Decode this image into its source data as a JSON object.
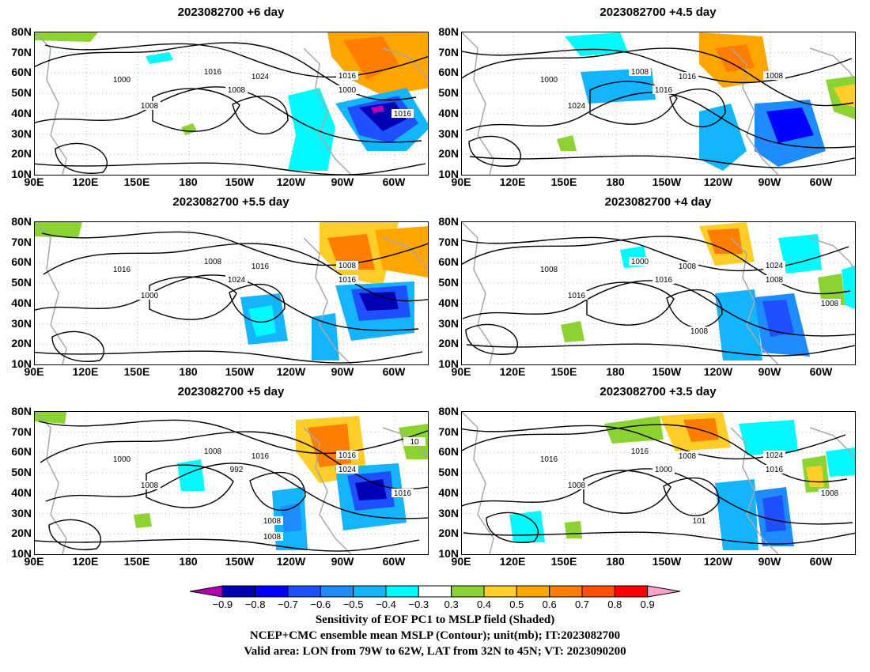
{
  "colors": {
    "neg90": "#b400b4",
    "neg80": "#0000b4",
    "neg70": "#0000ff",
    "neg60": "#1e50ff",
    "neg50": "#1e8cff",
    "neg40": "#14b4ff",
    "neg30": "#00faff",
    "zero": "#ffffff",
    "pos30": "#8cd232",
    "pos40": "#ffcd28",
    "pos50": "#ffa500",
    "pos60": "#ff7d00",
    "pos70": "#ff5000",
    "pos80": "#ff0000",
    "pos90": "#ffa0c8",
    "contour": "#000000",
    "coast": "#a8a8a8"
  },
  "axes": {
    "yticks": [
      "80N",
      "70N",
      "60N",
      "50N",
      "40N",
      "30N",
      "20N",
      "10N"
    ],
    "xticks": [
      "90E",
      "120E",
      "150E",
      "180",
      "150W",
      "120W",
      "90W",
      "60W"
    ]
  },
  "panels": [
    {
      "title": "2023082700  +6 day",
      "contours": [
        "1000",
        "1016",
        "1024",
        "1008",
        "1008",
        "1016",
        "1000",
        "1016"
      ]
    },
    {
      "title": "2023082700  +4.5 day",
      "contours": [
        "1000",
        "1008",
        "1016",
        "1016",
        "1024",
        "1008"
      ]
    },
    {
      "title": "2023082700  +5.5 day",
      "contours": [
        "1016",
        "1008",
        "1016",
        "1024",
        "1000",
        "1008",
        "1016"
      ]
    },
    {
      "title": "2023082700  +4 day",
      "contours": [
        "1008",
        "1000",
        "1008",
        "1016",
        "1016",
        "1024",
        "1008",
        "1008",
        "1008"
      ]
    },
    {
      "title": "2023082700  +5 day",
      "contours": [
        "1000",
        "1008",
        "1016",
        "992",
        "1008",
        "1016",
        "1024",
        "1016",
        "1008",
        "1008",
        "10"
      ]
    },
    {
      "title": "2023082700  +3.5 day",
      "contours": [
        "1016",
        "1016",
        "1008",
        "1000",
        "1008",
        "1024",
        "1016",
        "1008",
        "101"
      ]
    }
  ],
  "colorbar": {
    "labels": [
      "-0.9",
      "-0.8",
      "-0.7",
      "-0.6",
      "-0.5",
      "-0.4",
      "-0.3",
      "0.3",
      "0.4",
      "0.5",
      "0.6",
      "0.7",
      "0.8",
      "0.9"
    ]
  },
  "caption": {
    "line1": "Sensitivity of EOF PC1 to MSLP field (Shaded)",
    "line2": "NCEP+CMC ensemble mean MSLP (Contour); unit(mb); IT:2023082700",
    "line3": "Valid area: LON from 79W to 62W, LAT from 32N to 45N; VT: 2023090200"
  }
}
